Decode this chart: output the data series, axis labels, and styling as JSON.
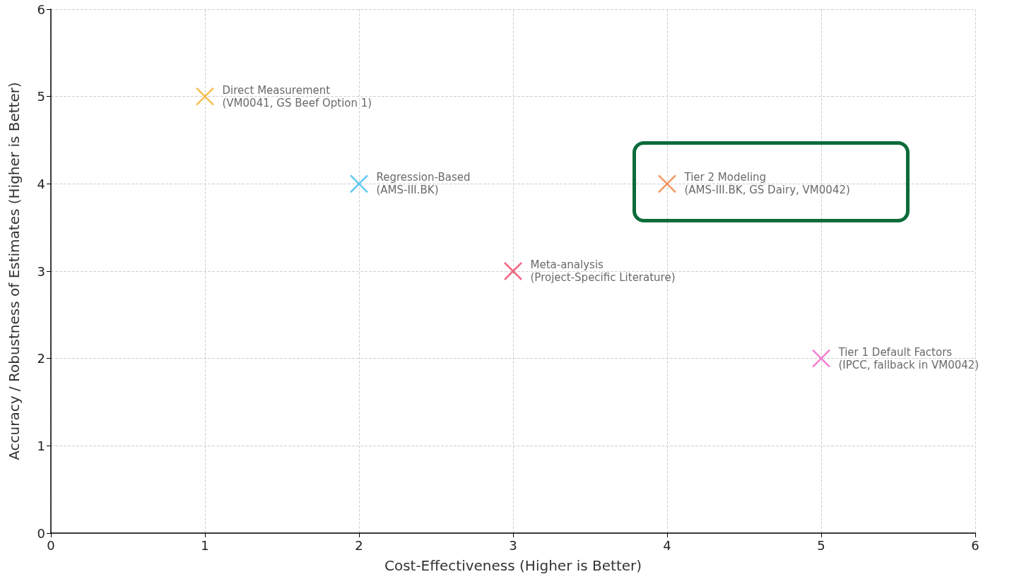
{
  "chart_data": {
    "type": "scatter",
    "xlabel": "Cost-Effectiveness (Higher is Better)",
    "ylabel": "Accuracy / Robustness of Estimates (Higher is Better)",
    "xlim": [
      0,
      6
    ],
    "xticks": [
      0,
      1,
      2,
      3,
      4,
      5,
      6
    ],
    "ylim": [
      0,
      6
    ],
    "yticks": [
      0,
      1,
      2,
      3,
      4,
      5,
      6
    ],
    "grid": true,
    "marker": "cross",
    "legend": false,
    "series": [
      {
        "name": "Direct Measurement\n(VM0041, GS Beef Option 1)",
        "color": "#f5b027",
        "x": [
          1
        ],
        "values": [
          5
        ]
      },
      {
        "name": "Regression-Based\n(AMS-III.BK)",
        "color": "#3dbcf0",
        "x": [
          2
        ],
        "values": [
          4
        ]
      },
      {
        "name": "Meta-analysis\n(Project-Specific Literature)",
        "color": "#ee4466",
        "x": [
          3
        ],
        "values": [
          3
        ]
      },
      {
        "name": "Tier 2 Modeling\n(AMS-III.BK, GS Dairy, VM0042)",
        "color": "#f07d3a",
        "x": [
          4
        ],
        "values": [
          4
        ]
      },
      {
        "name": "Tier 1 Default Factors\n(IPCC, fallback in VM0042)",
        "color": "#f060c8",
        "x": [
          5
        ],
        "values": [
          2
        ]
      }
    ]
  }
}
